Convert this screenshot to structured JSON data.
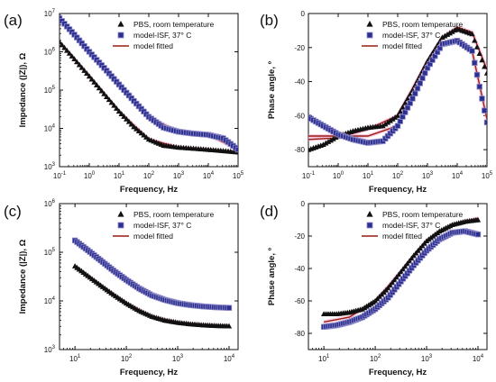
{
  "colors": {
    "pbs": "#111111",
    "isf_fill": "#2b2f8f",
    "isf_edge": "#8e89c8",
    "model": "#9c1c12",
    "model_halo": "#f2b8d6"
  },
  "chart_data": [
    {
      "panel": "(a)",
      "type": "line",
      "xlabel": "Frequency, Hz",
      "ylabel": "Impedance (|Z|), Ω",
      "x_scale": "log",
      "y_scale": "log",
      "xlim": [
        0.1,
        100000
      ],
      "ylim": [
        1000,
        10000000
      ],
      "x_ticks": [
        {
          "value": 0.1,
          "base": "10",
          "exp": "-1"
        },
        {
          "value": 1,
          "base": "10",
          "exp": "0"
        },
        {
          "value": 10,
          "base": "10",
          "exp": "1"
        },
        {
          "value": 100,
          "base": "10",
          "exp": "2"
        },
        {
          "value": 1000,
          "base": "10",
          "exp": "3"
        },
        {
          "value": 10000,
          "base": "10",
          "exp": "4"
        },
        {
          "value": 100000,
          "base": "10",
          "exp": "5"
        }
      ],
      "y_ticks": [
        {
          "value": 1000,
          "base": "10",
          "exp": "3"
        },
        {
          "value": 10000,
          "base": "10",
          "exp": "4"
        },
        {
          "value": 100000,
          "base": "10",
          "exp": "5"
        },
        {
          "value": 1000000,
          "base": "10",
          "exp": "6"
        },
        {
          "value": 10000000,
          "base": "10",
          "exp": "7"
        }
      ],
      "legend": [
        "PBS, room temperature",
        "model-ISF, 37° C",
        "model fitted"
      ],
      "series": [
        {
          "name": "PBS, room temperature",
          "marker": "triangle",
          "x": [
            0.1,
            0.316,
            1,
            3.16,
            10,
            31.6,
            100,
            316,
            1000,
            3162,
            10000,
            31623,
            100000
          ],
          "y": [
            1800000,
            650000,
            230000,
            80000,
            28000,
            11000,
            5200,
            3600,
            3200,
            3000,
            2800,
            2600,
            2400
          ]
        },
        {
          "name": "model-ISF, 37° C",
          "marker": "square",
          "x": [
            0.1,
            0.316,
            1,
            3.16,
            10,
            31.6,
            100,
            316,
            1000,
            3162,
            10000,
            31623,
            100000
          ],
          "y": [
            7500000,
            2800000,
            1000000,
            380000,
            140000,
            52000,
            20000,
            10500,
            8200,
            7300,
            6800,
            5500,
            2800
          ]
        },
        {
          "name": "model fitted",
          "marker": "line",
          "x": [
            0.1,
            1,
            10,
            100,
            1000,
            10000,
            100000
          ],
          "y": [
            1800000,
            230000,
            28000,
            5200,
            3200,
            2800,
            2400
          ]
        },
        {
          "name": "model fitted",
          "marker": "line",
          "x": [
            0.1,
            1,
            10,
            100,
            1000,
            10000,
            100000
          ],
          "y": [
            7500000,
            1000000,
            140000,
            20000,
            8200,
            6800,
            2800
          ]
        }
      ]
    },
    {
      "panel": "(b)",
      "type": "line",
      "xlabel": "Frequency, Hz",
      "ylabel": "Phase angle, º",
      "x_scale": "log",
      "y_scale": "linear",
      "xlim": [
        0.1,
        100000
      ],
      "ylim": [
        -90,
        0
      ],
      "x_ticks": [
        {
          "value": 0.1,
          "base": "10",
          "exp": "-1"
        },
        {
          "value": 1,
          "base": "10",
          "exp": "0"
        },
        {
          "value": 10,
          "base": "10",
          "exp": "1"
        },
        {
          "value": 100,
          "base": "10",
          "exp": "2"
        },
        {
          "value": 1000,
          "base": "10",
          "exp": "3"
        },
        {
          "value": 10000,
          "base": "10",
          "exp": "4"
        },
        {
          "value": 100000,
          "base": "10",
          "exp": "5"
        }
      ],
      "y_ticks": [
        {
          "value": -80,
          "label": "-80"
        },
        {
          "value": -60,
          "label": "-60"
        },
        {
          "value": -40,
          "label": "-40"
        },
        {
          "value": -20,
          "label": "-20"
        },
        {
          "value": 0,
          "label": "0"
        }
      ],
      "legend": [
        "PBS, room temperature",
        "model-ISF, 37° C",
        "model fitted"
      ],
      "series": [
        {
          "name": "PBS, room temperature",
          "marker": "triangle",
          "x": [
            0.1,
            0.316,
            1,
            3.16,
            10,
            31.6,
            100,
            316,
            1000,
            3162,
            10000,
            31623,
            100000
          ],
          "y": [
            -80,
            -77,
            -72,
            -69,
            -67,
            -66,
            -60,
            -45,
            -28,
            -14,
            -9,
            -12,
            -35
          ]
        },
        {
          "name": "model-ISF, 37° C",
          "marker": "square",
          "x": [
            0.1,
            0.316,
            1,
            3.16,
            10,
            31.6,
            100,
            316,
            1000,
            3162,
            10000,
            31623,
            100000
          ],
          "y": [
            -61,
            -66,
            -71,
            -74,
            -76,
            -75,
            -66,
            -50,
            -32,
            -18,
            -16,
            -22,
            -64
          ]
        },
        {
          "name": "model fitted",
          "marker": "line",
          "x": [
            0.1,
            1,
            10,
            100,
            1000,
            3162,
            10000,
            31623,
            100000
          ],
          "y": [
            -74,
            -73,
            -68,
            -60,
            -28,
            -14,
            -8,
            -11,
            -33
          ]
        },
        {
          "name": "model fitted",
          "marker": "line",
          "x": [
            0.1,
            1,
            10,
            100,
            1000,
            3162,
            10000,
            31623,
            100000
          ],
          "y": [
            -72,
            -72,
            -72,
            -66,
            -32,
            -18,
            -16,
            -22,
            -62
          ]
        }
      ]
    },
    {
      "panel": "(c)",
      "type": "line",
      "xlabel": "Frequency, Hz",
      "ylabel": "Impedance (|Z|), Ω",
      "x_scale": "log",
      "y_scale": "log",
      "xlim": [
        5,
        15000
      ],
      "ylim": [
        1000,
        1000000
      ],
      "x_ticks": [
        {
          "value": 10,
          "base": "10",
          "exp": "1"
        },
        {
          "value": 100,
          "base": "10",
          "exp": "2"
        },
        {
          "value": 1000,
          "base": "10",
          "exp": "3"
        },
        {
          "value": 10000,
          "base": "10",
          "exp": "4"
        }
      ],
      "y_ticks": [
        {
          "value": 1000,
          "base": "10",
          "exp": "3"
        },
        {
          "value": 10000,
          "base": "10",
          "exp": "4"
        },
        {
          "value": 100000,
          "base": "10",
          "exp": "5"
        },
        {
          "value": 1000000,
          "base": "10",
          "exp": "6"
        }
      ],
      "legend": [
        "PBS, room temperature",
        "model-ISF, 37° C",
        "model fitted"
      ],
      "series": [
        {
          "name": "PBS, room temperature",
          "marker": "triangle",
          "x": [
            10,
            17.8,
            31.6,
            56.2,
            100,
            178,
            316,
            562,
            1000,
            1778,
            3162,
            5623,
            10000
          ],
          "y": [
            52000,
            33000,
            21000,
            13500,
            9000,
            6300,
            4800,
            4000,
            3600,
            3350,
            3200,
            3100,
            3050
          ]
        },
        {
          "name": "model-ISF, 37° C",
          "marker": "square",
          "x": [
            10,
            17.8,
            31.6,
            56.2,
            100,
            178,
            316,
            562,
            1000,
            1778,
            3162,
            5623,
            10000
          ],
          "y": [
            175000,
            110000,
            68000,
            42000,
            27000,
            18000,
            13000,
            10500,
            9000,
            8200,
            7700,
            7400,
            7200
          ]
        },
        {
          "name": "model fitted",
          "marker": "line",
          "x": [
            10,
            31.6,
            100,
            316,
            1000,
            3162,
            10000
          ],
          "y": [
            52000,
            21000,
            9000,
            4800,
            3600,
            3200,
            3050
          ]
        },
        {
          "name": "model fitted",
          "marker": "line",
          "x": [
            10,
            31.6,
            100,
            316,
            1000,
            3162,
            10000
          ],
          "y": [
            175000,
            68000,
            27000,
            13000,
            9000,
            7700,
            7200
          ]
        }
      ]
    },
    {
      "panel": "(d)",
      "type": "line",
      "xlabel": "Frequency, Hz",
      "ylabel": "Phase angle, º",
      "x_scale": "log",
      "y_scale": "linear",
      "xlim": [
        5,
        15000
      ],
      "ylim": [
        -90,
        0
      ],
      "x_ticks": [
        {
          "value": 10,
          "base": "10",
          "exp": "1"
        },
        {
          "value": 100,
          "base": "10",
          "exp": "2"
        },
        {
          "value": 1000,
          "base": "10",
          "exp": "3"
        },
        {
          "value": 10000,
          "base": "10",
          "exp": "4"
        }
      ],
      "y_ticks": [
        {
          "value": -80,
          "label": "-80"
        },
        {
          "value": -60,
          "label": "-60"
        },
        {
          "value": -40,
          "label": "-40"
        },
        {
          "value": -20,
          "label": "-20"
        },
        {
          "value": 0,
          "label": "0"
        }
      ],
      "legend": [
        "PBS, room temperature",
        "model-ISF, 37° C",
        "model fitted"
      ],
      "series": [
        {
          "name": "PBS, room temperature",
          "marker": "triangle",
          "x": [
            10,
            17.8,
            31.6,
            56.2,
            100,
            178,
            316,
            562,
            1000,
            1778,
            3162,
            5623,
            10000
          ],
          "y": [
            -68,
            -68,
            -67,
            -65,
            -60,
            -52,
            -42,
            -32,
            -23,
            -17,
            -13,
            -11,
            -10
          ]
        },
        {
          "name": "model-ISF, 37° C",
          "marker": "square",
          "x": [
            10,
            17.8,
            31.6,
            56.2,
            100,
            178,
            316,
            562,
            1000,
            1778,
            3162,
            5623,
            10000
          ],
          "y": [
            -76,
            -75,
            -73,
            -70,
            -65,
            -58,
            -48,
            -38,
            -29,
            -22,
            -18,
            -17,
            -19
          ]
        },
        {
          "name": "model fitted",
          "marker": "line",
          "x": [
            10,
            31.6,
            100,
            316,
            1000,
            3162,
            10000
          ],
          "y": [
            -73,
            -70,
            -60,
            -42,
            -23,
            -13,
            -9
          ]
        },
        {
          "name": "model fitted",
          "marker": "line",
          "x": [
            10,
            31.6,
            100,
            316,
            1000,
            3162,
            10000
          ],
          "y": [
            -76,
            -73,
            -65,
            -48,
            -29,
            -17,
            -18
          ]
        }
      ]
    }
  ]
}
